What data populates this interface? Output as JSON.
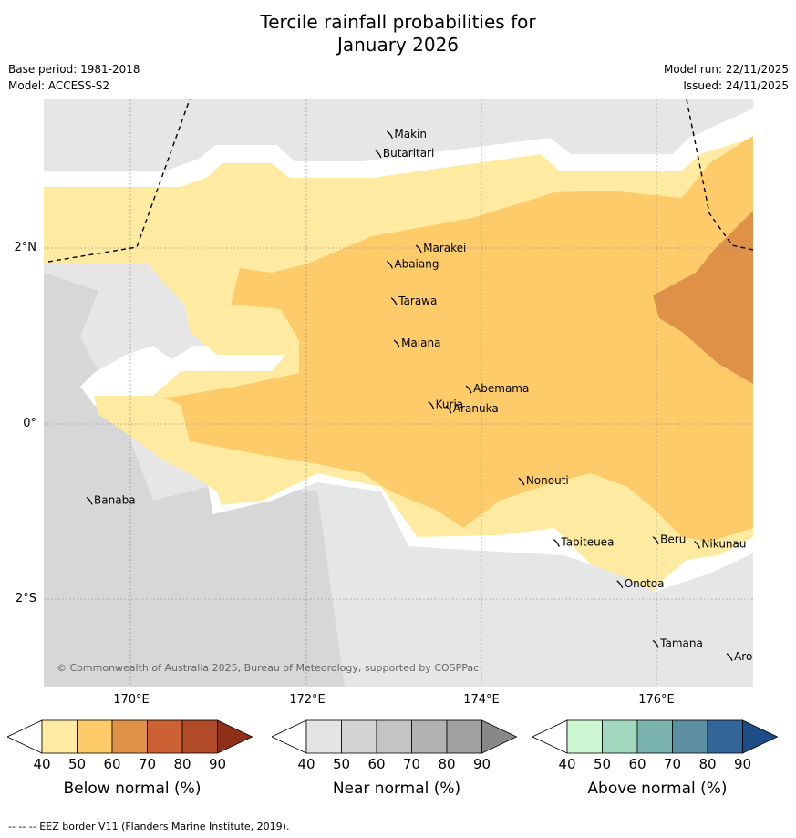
{
  "title_line1": "Tercile rainfall probabilities for",
  "title_line2": "January 2026",
  "base_period": "Base period: 1981-2018",
  "model": "Model: ACCESS-S2",
  "model_run": "Model run: 22/11/2025",
  "issued": "Issued: 24/11/2025",
  "copyright": "© Commonwealth of Australia 2025, Bureau of Meteorology, supported by COSPPac",
  "x_ticks": [
    "170°E",
    "172°E",
    "174°E",
    "176°E"
  ],
  "y_ticks": [
    "2°N",
    "0°",
    "2°S"
  ],
  "islands": [
    {
      "name": "Makin",
      "lon": 172.95,
      "lat": 3.3
    },
    {
      "name": "Butaritari",
      "lon": 172.82,
      "lat": 3.08
    },
    {
      "name": "Marakei",
      "lon": 173.28,
      "lat": 2.0
    },
    {
      "name": "Abaiang",
      "lon": 172.95,
      "lat": 1.82
    },
    {
      "name": "Tarawa",
      "lon": 173.0,
      "lat": 1.4
    },
    {
      "name": "Maiana",
      "lon": 173.03,
      "lat": 0.92
    },
    {
      "name": "Abemama",
      "lon": 173.85,
      "lat": 0.4
    },
    {
      "name": "Kuria",
      "lon": 173.42,
      "lat": 0.22
    },
    {
      "name": "Aranuka",
      "lon": 173.62,
      "lat": 0.17
    },
    {
      "name": "Banaba",
      "lon": 169.53,
      "lat": -0.87
    },
    {
      "name": "Nonouti",
      "lon": 174.45,
      "lat": -0.65
    },
    {
      "name": "Tabiteuea",
      "lon": 174.85,
      "lat": -1.35
    },
    {
      "name": "Beru",
      "lon": 175.98,
      "lat": -1.32
    },
    {
      "name": "Nikunau",
      "lon": 176.45,
      "lat": -1.37
    },
    {
      "name": "Onotoa",
      "lon": 175.57,
      "lat": -1.82
    },
    {
      "name": "Tamana",
      "lon": 175.98,
      "lat": -2.5
    },
    {
      "name": "Arorae",
      "lon": 176.82,
      "lat": -2.65
    }
  ],
  "colorbars": [
    {
      "label": "Below normal (%)",
      "ticks": [
        "40",
        "50",
        "60",
        "70",
        "80",
        "90"
      ],
      "colors": [
        "#ffffff",
        "#feeba1",
        "#fdcb69",
        "#df9247",
        "#cc6233",
        "#b14a26",
        "#8e2f1a"
      ]
    },
    {
      "label": "Near normal (%)",
      "ticks": [
        "40",
        "50",
        "60",
        "70",
        "80",
        "90"
      ],
      "colors": [
        "#ffffff",
        "#e4e4e4",
        "#d4d4d4",
        "#c4c4c4",
        "#b2b2b2",
        "#a0a0a0",
        "#888888"
      ]
    },
    {
      "label": "Above normal (%)",
      "ticks": [
        "40",
        "50",
        "60",
        "70",
        "80",
        "90"
      ],
      "colors": [
        "#ffffff",
        "#ccf6d1",
        "#a2d8bd",
        "#7ab3ae",
        "#5b8fa1",
        "#336598",
        "#1c4d86"
      ]
    }
  ],
  "footer": "--  --  -- EEZ border V11 (Flanders Marine Institute, 2019)."
}
